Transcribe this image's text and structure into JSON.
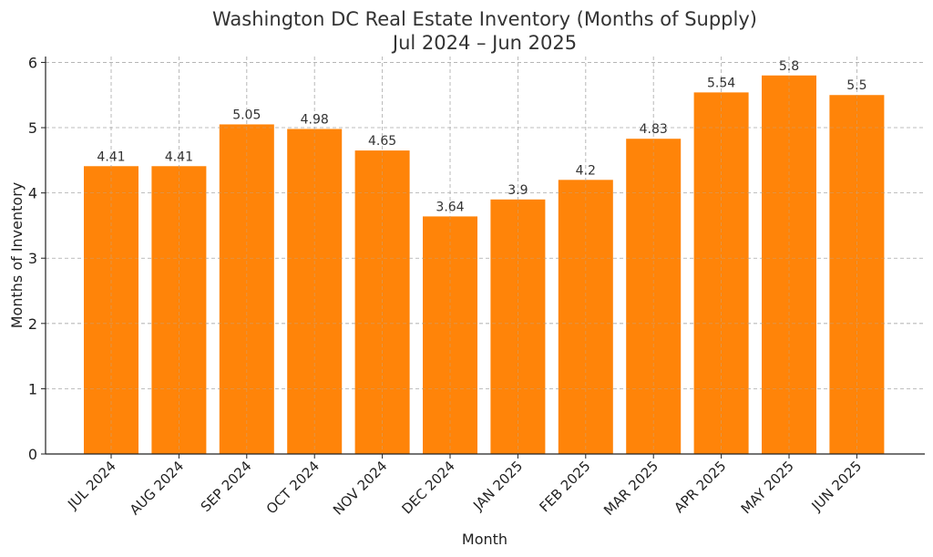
{
  "chart_data": {
    "type": "bar",
    "title": "Washington DC Real Estate Inventory (Months of Supply)",
    "subtitle": "Jul 2024 – Jun 2025",
    "xlabel": "Month",
    "ylabel": "Months of Inventory",
    "categories": [
      "JUL 2024",
      "AUG 2024",
      "SEP 2024",
      "OCT 2024",
      "NOV 2024",
      "DEC 2024",
      "JAN 2025",
      "FEB 2025",
      "MAR 2025",
      "APR 2025",
      "MAY 2025",
      "JUN 2025"
    ],
    "values": [
      4.41,
      4.41,
      5.05,
      4.98,
      4.65,
      3.64,
      3.9,
      4.2,
      4.83,
      5.54,
      5.8,
      5.5
    ],
    "data_labels": [
      "4.41",
      "4.41",
      "5.05",
      "4.98",
      "4.65",
      "3.64",
      "3.9",
      "4.2",
      "4.83",
      "5.54",
      "5.8",
      "5.5"
    ],
    "ylim": [
      0,
      6.09
    ],
    "yticks": [
      0,
      1,
      2,
      3,
      4,
      5,
      6
    ],
    "grid": true,
    "bar_color": "#ff8409"
  }
}
